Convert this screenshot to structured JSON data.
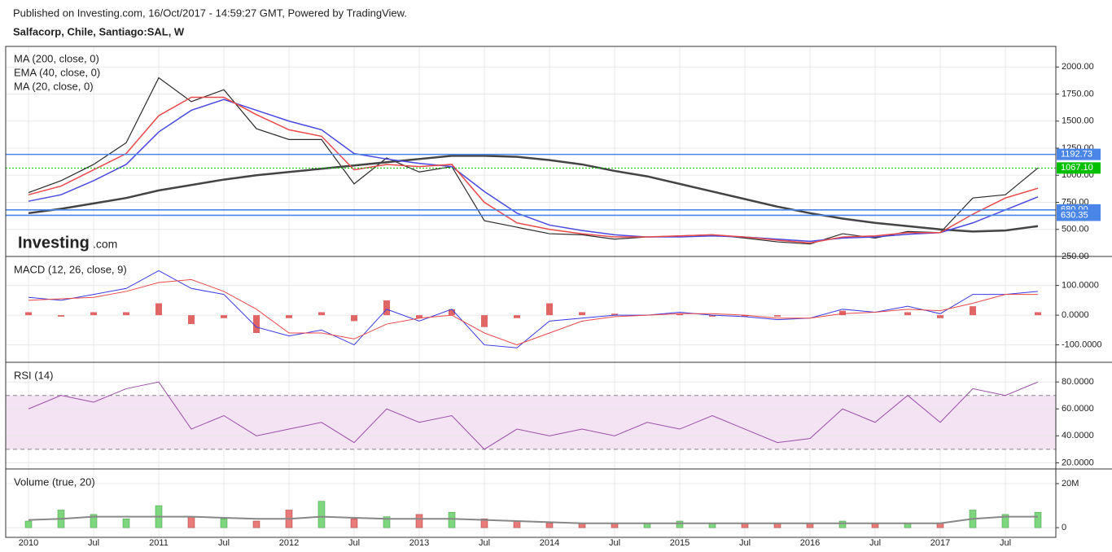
{
  "header": {
    "published": "Published on Investing.com, 16/Oct/2017 - 14:59:27 GMT, Powered by TradingView.",
    "symbol": "Salfacorp, Chile, Santiago:SAL, W"
  },
  "logo": {
    "name": "Investing",
    "suffix": ".com"
  },
  "chart_data": [
    {
      "type": "line",
      "x": [
        "2010-01",
        "2010-04",
        "2010-07",
        "2010-10",
        "2011-01",
        "2011-04",
        "2011-07",
        "2011-10",
        "2012-01",
        "2012-04",
        "2012-07",
        "2012-10",
        "2013-01",
        "2013-04",
        "2013-07",
        "2013-10",
        "2014-01",
        "2014-04",
        "2014-07",
        "2014-10",
        "2015-01",
        "2015-04",
        "2015-07",
        "2015-10",
        "2016-01",
        "2016-04",
        "2016-07",
        "2016-10",
        "2017-01",
        "2017-04",
        "2017-07",
        "2017-10"
      ],
      "ylim": [
        250,
        2190
      ],
      "yticks": [
        {
          "value": 250,
          "label": "250.00"
        },
        {
          "value": 500,
          "label": "500.00"
        },
        {
          "value": 750,
          "label": "750.00"
        },
        {
          "value": 1000,
          "label": "1000.00"
        },
        {
          "value": 1250,
          "label": "1250.00"
        },
        {
          "value": 1500,
          "label": "1500.00"
        },
        {
          "value": 1750,
          "label": "1750.00"
        },
        {
          "value": 2000,
          "label": "2000.00"
        }
      ],
      "grid": true,
      "series": [
        {
          "type": "line",
          "color": "#2b2b2b",
          "values": [
            840,
            950,
            1100,
            1300,
            1900,
            1680,
            1790,
            1430,
            1330,
            1330,
            920,
            1160,
            1030,
            1080,
            580,
            520,
            460,
            450,
            410,
            430,
            440,
            450,
            420,
            385,
            365,
            460,
            420,
            480,
            470,
            790,
            820,
            1067
          ]
        },
        {
          "name": "MA (200, close, 0)",
          "type": "line",
          "color": "#444444",
          "width": 2.5,
          "values": [
            650,
            690,
            740,
            790,
            860,
            910,
            960,
            1000,
            1030,
            1060,
            1090,
            1120,
            1150,
            1180,
            1180,
            1170,
            1140,
            1100,
            1040,
            990,
            920,
            850,
            780,
            710,
            650,
            600,
            560,
            530,
            500,
            480,
            490,
            530
          ]
        },
        {
          "name": "EMA (40, close, 0)",
          "type": "line",
          "color": "#4a4ae0",
          "width": 1.5,
          "values": [
            760,
            820,
            950,
            1100,
            1400,
            1600,
            1700,
            1600,
            1500,
            1420,
            1200,
            1150,
            1110,
            1080,
            850,
            650,
            540,
            490,
            450,
            430,
            430,
            440,
            430,
            410,
            390,
            420,
            430,
            455,
            470,
            560,
            680,
            800
          ]
        },
        {
          "name": "MA (20, close, 0)",
          "type": "line",
          "color": "#e84a4a",
          "width": 1.5,
          "values": [
            820,
            900,
            1050,
            1200,
            1550,
            1720,
            1720,
            1560,
            1420,
            1360,
            1050,
            1100,
            1080,
            1100,
            750,
            560,
            500,
            460,
            430,
            430,
            440,
            450,
            430,
            400,
            375,
            430,
            440,
            470,
            470,
            640,
            790,
            880
          ]
        }
      ],
      "levels": [
        {
          "value": 1192.73,
          "color": "#4a86e8",
          "style": "solid"
        },
        {
          "value": 1067.1,
          "label": "1067.10",
          "color": "#00c000",
          "style": "dotted"
        },
        {
          "value": 680,
          "label": "680.00",
          "color": "#4a86e8",
          "style": "solid"
        },
        {
          "value": 630.35,
          "color": "#4a86e8",
          "style": "solid"
        }
      ]
    },
    {
      "type": "line",
      "title": "MACD (12, 26, close, 9)",
      "x": [
        "2010-01",
        "2010-04",
        "2010-07",
        "2010-10",
        "2011-01",
        "2011-04",
        "2011-07",
        "2011-10",
        "2012-01",
        "2012-04",
        "2012-07",
        "2012-10",
        "2013-01",
        "2013-04",
        "2013-07",
        "2013-10",
        "2014-01",
        "2014-04",
        "2014-07",
        "2014-10",
        "2015-01",
        "2015-04",
        "2015-07",
        "2015-10",
        "2016-01",
        "2016-04",
        "2016-07",
        "2016-10",
        "2017-01",
        "2017-04",
        "2017-07",
        "2017-10"
      ],
      "ylim": [
        -156,
        195
      ],
      "yticks": [
        {
          "value": -100,
          "label": "-100.0000"
        },
        {
          "value": 0,
          "label": "0.0000"
        },
        {
          "value": 100,
          "label": "100.0000"
        }
      ],
      "grid": true,
      "series": [
        {
          "type": "bar",
          "color": "#e06666",
          "values": [
            10,
            -5,
            10,
            10,
            40,
            -30,
            -10,
            -60,
            -10,
            10,
            -20,
            50,
            -10,
            20,
            -40,
            -10,
            40,
            10,
            5,
            0,
            5,
            -5,
            -5,
            -5,
            0,
            15,
            0,
            10,
            -10,
            30,
            0,
            10
          ]
        },
        {
          "type": "line",
          "color": "#3a3ae0",
          "width": 1,
          "values": [
            60,
            50,
            70,
            90,
            150,
            90,
            70,
            -40,
            -70,
            -50,
            -100,
            20,
            -20,
            20,
            -100,
            -110,
            -20,
            -10,
            0,
            0,
            10,
            0,
            -5,
            -15,
            -10,
            20,
            10,
            30,
            5,
            70,
            70,
            80
          ]
        },
        {
          "type": "line",
          "color": "#e84a4a",
          "width": 1,
          "values": [
            50,
            55,
            60,
            80,
            110,
            120,
            80,
            20,
            -60,
            -60,
            -80,
            -30,
            -10,
            0,
            -60,
            -100,
            -60,
            -20,
            -5,
            0,
            5,
            5,
            0,
            -10,
            -10,
            5,
            10,
            20,
            15,
            40,
            70,
            70
          ]
        }
      ]
    },
    {
      "type": "line",
      "title": "RSI (14)",
      "x": [
        "2010-01",
        "2010-04",
        "2010-07",
        "2010-10",
        "2011-01",
        "2011-04",
        "2011-07",
        "2011-10",
        "2012-01",
        "2012-04",
        "2012-07",
        "2012-10",
        "2013-01",
        "2013-04",
        "2013-07",
        "2013-10",
        "2014-01",
        "2014-04",
        "2014-07",
        "2014-10",
        "2015-01",
        "2015-04",
        "2015-07",
        "2015-10",
        "2016-01",
        "2016-04",
        "2016-07",
        "2016-10",
        "2017-01",
        "2017-04",
        "2017-07",
        "2017-10"
      ],
      "ylim": [
        16,
        94
      ],
      "yticks": [
        {
          "value": 20,
          "label": "20.0000"
        },
        {
          "value": 40,
          "label": "40.0000"
        },
        {
          "value": 60,
          "label": "60.0000"
        },
        {
          "value": 80,
          "label": "80.0000"
        }
      ],
      "grid": true,
      "bands": [
        30,
        70
      ],
      "band_color": "#f3e3f3",
      "series": [
        {
          "type": "line",
          "color": "#9c4fa8",
          "width": 1,
          "values": [
            60,
            70,
            65,
            75,
            80,
            45,
            55,
            40,
            45,
            50,
            35,
            60,
            50,
            55,
            30,
            45,
            40,
            45,
            40,
            50,
            45,
            55,
            45,
            35,
            38,
            60,
            50,
            70,
            50,
            75,
            70,
            80
          ]
        }
      ]
    },
    {
      "type": "bar",
      "title": "Volume (true, 20)",
      "x": [
        "2010-01",
        "2010-04",
        "2010-07",
        "2010-10",
        "2011-01",
        "2011-04",
        "2011-07",
        "2011-10",
        "2012-01",
        "2012-04",
        "2012-07",
        "2012-10",
        "2013-01",
        "2013-04",
        "2013-07",
        "2013-10",
        "2014-01",
        "2014-04",
        "2014-07",
        "2014-10",
        "2015-01",
        "2015-04",
        "2015-07",
        "2015-10",
        "2016-01",
        "2016-04",
        "2016-07",
        "2016-10",
        "2017-01",
        "2017-04",
        "2017-07",
        "2017-10"
      ],
      "ylim": [
        -4400000,
        26300000
      ],
      "yticks": [
        0,
        {
          "value": 20000000,
          "label": "20M"
        }
      ],
      "grid": true,
      "up_color": "#7ed67e",
      "down_color": "#e87a7a",
      "series": [
        {
          "type": "bar",
          "values": [
            3000000,
            8000000,
            6000000,
            4000000,
            10000000,
            5000000,
            4000000,
            3000000,
            8000000,
            12000000,
            4000000,
            5000000,
            6000000,
            7000000,
            4000000,
            3000000,
            2000000,
            2000000,
            2000000,
            2000000,
            3000000,
            2000000,
            2000000,
            2000000,
            2000000,
            3000000,
            2000000,
            2000000,
            2000000,
            8000000,
            6000000,
            7000000
          ]
        },
        {
          "type": "line",
          "color": "#888888",
          "width": 2,
          "values": [
            3500000,
            4000000,
            5000000,
            5000000,
            5000000,
            5000000,
            4500000,
            4000000,
            4000000,
            5000000,
            4500000,
            4000000,
            4000000,
            4000000,
            3500000,
            3000000,
            2500000,
            2000000,
            2000000,
            2000000,
            2000000,
            2000000,
            2000000,
            2000000,
            2000000,
            2000000,
            2000000,
            2000000,
            2000000,
            4000000,
            5000000,
            5000000
          ]
        }
      ],
      "xticks": [
        {
          "value": "2010-01",
          "label": "2010"
        },
        {
          "value": "2010-07",
          "label": "Jul"
        },
        {
          "value": "2011-01",
          "label": "2011"
        },
        {
          "value": "2011-07",
          "label": "Jul"
        },
        {
          "value": "2012-01",
          "label": "2012"
        },
        {
          "value": "2012-07",
          "label": "Jul"
        },
        {
          "value": "2013-01",
          "label": "2013"
        },
        {
          "value": "2013-07",
          "label": "Jul"
        },
        {
          "value": "2014-01",
          "label": "2014"
        },
        {
          "value": "2014-07",
          "label": "Jul"
        },
        {
          "value": "2015-01",
          "label": "2015"
        },
        {
          "value": "2015-07",
          "label": "Jul"
        },
        {
          "value": "2016-01",
          "label": "2016"
        },
        {
          "value": "2016-07",
          "label": "Jul"
        },
        {
          "value": "2017-01",
          "label": "2017"
        },
        {
          "value": "2017-07",
          "label": "Jul"
        }
      ]
    }
  ]
}
